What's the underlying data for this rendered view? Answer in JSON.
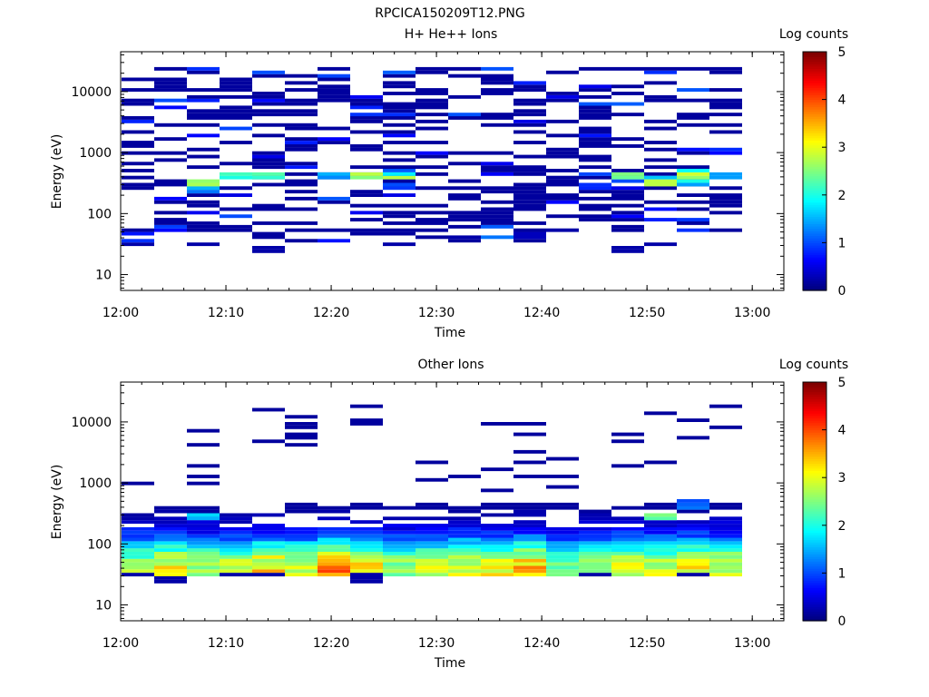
{
  "figure_title": "RPCICA150209T12.PNG",
  "colorbar": {
    "colors": [
      "#00007f",
      "#0000ff",
      "#007fff",
      "#00ffff",
      "#7fff7f",
      "#ffff00",
      "#ff7f00",
      "#ff0000",
      "#7f0000"
    ]
  },
  "chart_data": [
    {
      "type": "heatmap",
      "title": "H+ He++ Ions",
      "xlabel": "Time",
      "ylabel": "Energy (eV)",
      "xlim": [
        "12:00",
        "13:03"
      ],
      "ylim": [
        5.5,
        45000
      ],
      "y_scale": "log",
      "x_ticks": [
        "12:00",
        "12:10",
        "12:20",
        "12:30",
        "12:40",
        "12:50",
        "13:00"
      ],
      "y_ticks": [
        "10",
        "100",
        "1000",
        "10000"
      ],
      "colorbar_label": "Log counts",
      "colorbar_range": [
        0,
        5
      ],
      "colorbar_ticks": [
        "0",
        "1",
        "2",
        "3",
        "4",
        "5"
      ],
      "time_bins": [
        "12:00",
        "12:03",
        "12:07",
        "12:10",
        "12:13",
        "12:17",
        "12:20",
        "12:23",
        "12:27",
        "12:30",
        "12:33",
        "12:37",
        "12:40",
        "12:43",
        "12:47",
        "12:50",
        "12:53",
        "12:57",
        "13:00"
      ],
      "cells": [
        [
          0,
          13,
          0.2
        ],
        [
          2,
          13,
          0.2
        ],
        [
          2,
          28,
          1.2
        ],
        [
          2,
          29,
          1.5
        ],
        [
          2,
          30,
          2.7
        ],
        [
          2,
          31,
          2.6
        ],
        [
          3,
          32,
          2.0
        ],
        [
          3,
          33,
          2.2
        ],
        [
          4,
          32,
          2.1
        ],
        [
          4,
          33,
          2.3
        ],
        [
          4,
          11,
          0.2
        ],
        [
          4,
          12,
          0.2
        ],
        [
          6,
          32,
          1.3
        ],
        [
          6,
          33,
          1.5
        ],
        [
          7,
          32,
          2.5
        ],
        [
          7,
          33,
          2.8
        ],
        [
          8,
          29,
          0.9
        ],
        [
          8,
          30,
          1.0
        ],
        [
          8,
          32,
          2.8
        ],
        [
          8,
          33,
          1.8
        ],
        [
          8,
          13,
          0.2
        ],
        [
          10,
          15,
          0.2
        ],
        [
          11,
          15,
          1.2
        ],
        [
          12,
          15,
          0.3
        ],
        [
          12,
          16,
          0.3
        ],
        [
          13,
          17,
          0.2
        ],
        [
          14,
          29,
          0.8
        ],
        [
          15,
          11,
          0.2
        ],
        [
          15,
          12,
          0.2
        ],
        [
          15,
          31,
          1.0
        ],
        [
          15,
          32,
          2.4
        ],
        [
          15,
          33,
          2.5
        ],
        [
          16,
          30,
          2.8
        ],
        [
          16,
          31,
          2.8
        ],
        [
          16,
          32,
          1.6
        ],
        [
          17,
          30,
          1.4
        ],
        [
          17,
          31,
          2.0
        ],
        [
          17,
          32,
          2.6
        ],
        [
          17,
          33,
          2.9
        ],
        [
          17,
          34,
          1.9
        ],
        [
          18,
          32,
          1.4
        ],
        [
          18,
          33,
          1.4
        ],
        [
          16,
          13,
          0.2
        ]
      ]
    },
    {
      "type": "heatmap",
      "title": "Other Ions",
      "xlabel": "Time",
      "ylabel": "Energy (eV)",
      "xlim": [
        "12:00",
        "13:03"
      ],
      "ylim": [
        5.5,
        45000
      ],
      "y_scale": "log",
      "x_ticks": [
        "12:00",
        "12:10",
        "12:20",
        "12:30",
        "12:40",
        "12:50",
        "13:00"
      ],
      "y_ticks": [
        "10",
        "100",
        "1000",
        "10000"
      ],
      "colorbar_label": "Log counts",
      "colorbar_range": [
        0,
        5
      ],
      "colorbar_ticks": [
        "0",
        "1",
        "2",
        "3",
        "4",
        "5"
      ],
      "time_bins": [
        "12:00",
        "12:03",
        "12:07",
        "12:10",
        "12:13",
        "12:17",
        "12:20",
        "12:23",
        "12:27",
        "12:30",
        "12:33",
        "12:37",
        "12:40",
        "12:43",
        "12:47",
        "12:50",
        "12:53",
        "12:57",
        "13:00"
      ],
      "profiles": [
        [
          12,
          2.8,
          1.0
        ],
        [
          12,
          3.1,
          1.2
        ],
        [
          12,
          2.8,
          1.1
        ],
        [
          12,
          2.9,
          1.2
        ],
        [
          11,
          3.3,
          1.2
        ],
        [
          12,
          3.0,
          1.2
        ],
        [
          12,
          3.6,
          1.2
        ],
        [
          11,
          3.2,
          1.2
        ],
        [
          12,
          2.7,
          1.1
        ],
        [
          12,
          2.8,
          1.3
        ],
        [
          12,
          3.0,
          1.3
        ],
        [
          12,
          3.1,
          1.3
        ],
        [
          11,
          3.4,
          1.3
        ],
        [
          11,
          2.4,
          1.2
        ],
        [
          12,
          2.6,
          1.2
        ],
        [
          12,
          2.9,
          1.2
        ],
        [
          12,
          2.8,
          1.2
        ],
        [
          12,
          3.2,
          1.3
        ],
        [
          12,
          3.0,
          1.2
        ]
      ],
      "cells": [
        [
          0,
          13,
          0.2
        ],
        [
          1,
          11,
          0.2
        ],
        [
          1,
          12,
          0.2
        ],
        [
          3,
          13,
          0.2
        ],
        [
          4,
          13,
          0.2
        ],
        [
          7,
          11,
          0.2
        ],
        [
          7,
          12,
          0.2
        ],
        [
          7,
          13,
          0.2
        ],
        [
          14,
          13,
          0.2
        ],
        [
          17,
          13,
          0.2
        ],
        [
          2,
          29,
          1.5
        ],
        [
          2,
          30,
          1.7
        ],
        [
          16,
          29,
          2.3
        ],
        [
          16,
          30,
          2.5
        ],
        [
          17,
          32,
          1.2
        ],
        [
          17,
          33,
          1.1
        ],
        [
          17,
          34,
          1.0
        ]
      ]
    }
  ]
}
